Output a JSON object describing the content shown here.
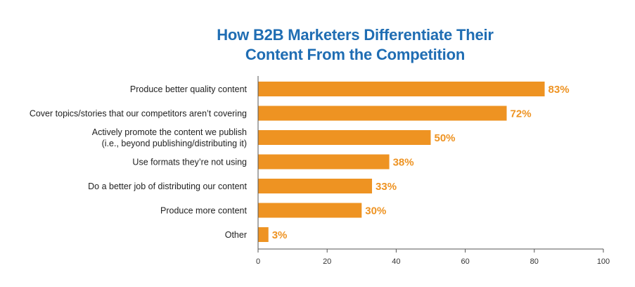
{
  "title_lines": [
    "How B2B Marketers Differentiate Their",
    "Content From the Competition"
  ],
  "colors": {
    "title": "#1f6db3",
    "bar": "#ee9322",
    "label": "#ee9322",
    "axis": "#555555",
    "text": "#222222"
  },
  "chart_data": {
    "type": "bar",
    "orientation": "horizontal",
    "title": "How B2B Marketers Differentiate Their Content From the Competition",
    "categories": [
      [
        "Produce better quality content"
      ],
      [
        "Cover topics/stories that our competitors aren’t covering"
      ],
      [
        "Actively promote the content we publish",
        "(i.e., beyond publishing/distributing it)"
      ],
      [
        "Use formats they’re not using"
      ],
      [
        "Do a better job of distributing our content"
      ],
      [
        "Produce more content"
      ],
      [
        "Other"
      ]
    ],
    "values": [
      83,
      72,
      50,
      38,
      33,
      30,
      3
    ],
    "value_labels": [
      "83%",
      "72%",
      "50%",
      "38%",
      "33%",
      "30%",
      "3%"
    ],
    "xlim": [
      0,
      100
    ],
    "xticks": [
      0,
      20,
      40,
      60,
      80,
      100
    ],
    "xlabel": "",
    "ylabel": "",
    "grid": false,
    "legend": "none"
  }
}
